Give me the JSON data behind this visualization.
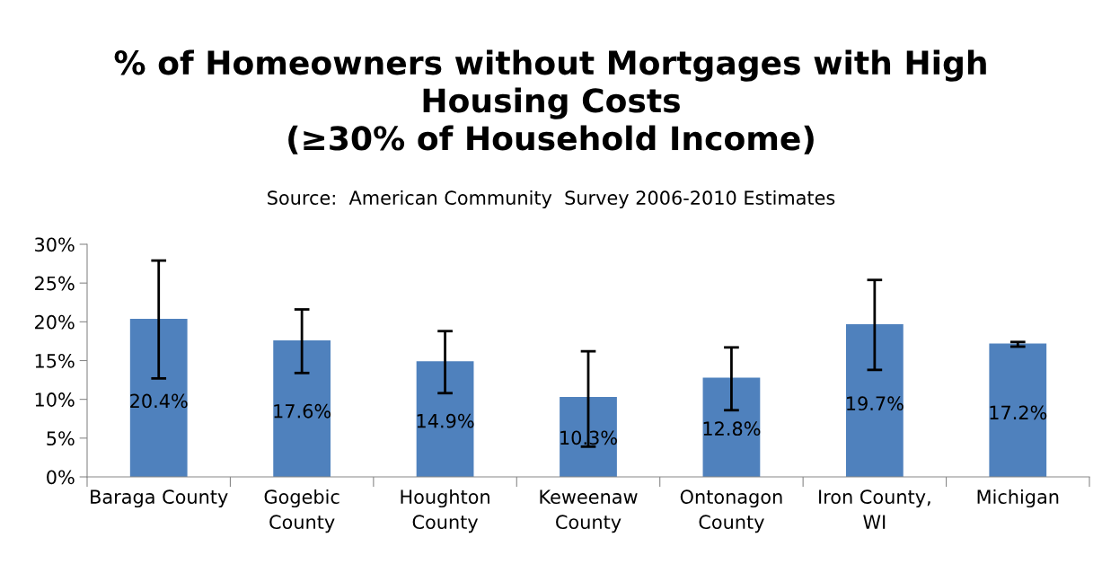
{
  "chart_data": {
    "type": "bar",
    "title": "% of Homeowners without Mortgages with High\nHousing Costs\n(≥30% of Household Income)",
    "subtitle": "Source:  American Community  Survey 2006-2010 Estimates",
    "categories": [
      "Baraga County",
      "Gogebic\nCounty",
      "Houghton\nCounty",
      "Keweenaw\nCounty",
      "Ontonagon\nCounty",
      "Iron County,\nWI",
      "Michigan"
    ],
    "values": [
      20.4,
      17.6,
      14.9,
      10.3,
      12.8,
      19.7,
      17.2
    ],
    "errors": [
      [
        12.7,
        27.9
      ],
      [
        13.4,
        21.6
      ],
      [
        10.8,
        18.8
      ],
      [
        3.9,
        16.2
      ],
      [
        8.6,
        16.7
      ],
      [
        13.8,
        25.4
      ],
      [
        16.8,
        17.4
      ]
    ],
    "value_labels": [
      "20.4%",
      "17.6%",
      "14.9%",
      "10.3%",
      "12.8%",
      "19.7%",
      "17.2%"
    ],
    "color": "#4f81bd",
    "ylim": [
      0,
      30
    ],
    "yticks": [
      {
        "value": 0,
        "label": "0%"
      },
      {
        "value": 5,
        "label": "5%"
      },
      {
        "value": 10,
        "label": "10%"
      },
      {
        "value": 15,
        "label": "15%"
      },
      {
        "value": 20,
        "label": "20%"
      },
      {
        "value": 25,
        "label": "25%"
      },
      {
        "value": 30,
        "label": "30%"
      }
    ],
    "grid": false,
    "legend": false
  }
}
